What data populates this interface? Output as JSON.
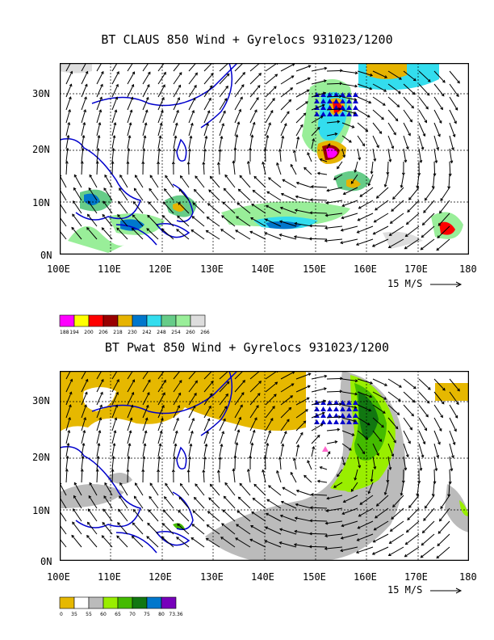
{
  "panel1": {
    "title": "BT CLAUS 850 Wind + Gyrelocs 931023/1200",
    "y_labels": [
      "30N",
      "20N",
      "10N",
      "0N"
    ],
    "x_labels": [
      "100E",
      "110E",
      "120E",
      "130E",
      "140E",
      "150E",
      "160E",
      "170E",
      "180"
    ],
    "scale_text": "15 M/S",
    "legend": {
      "colors": [
        "#ff00ff",
        "#ffff00",
        "#ff0000",
        "#990000",
        "#e6b300",
        "#0077cc",
        "#33ddee",
        "#66cc88",
        "#99ee99",
        "#dddddd"
      ],
      "labels": [
        "188",
        "194",
        "200",
        "206",
        "218",
        "230",
        "242",
        "248",
        "254",
        "260",
        "266"
      ]
    }
  },
  "panel2": {
    "title": "BT Pwat 850 Wind + Gyrelocs 931023/1200",
    "y_labels": [
      "30N",
      "20N",
      "10N",
      "0N"
    ],
    "x_labels": [
      "100E",
      "110E",
      "120E",
      "130E",
      "140E",
      "150E",
      "160E",
      "170E",
      "180"
    ],
    "scale_text": "15 M/S",
    "legend": {
      "colors": [
        "#e6b800",
        "#ffffff",
        "#bbbbbb",
        "#99ee00",
        "#44bb00",
        "#117711",
        "#0077cc",
        "#7700bb"
      ],
      "labels": [
        "0",
        "35",
        "55",
        "60",
        "65",
        "70",
        "75",
        "80",
        "73.36"
      ]
    }
  }
}
